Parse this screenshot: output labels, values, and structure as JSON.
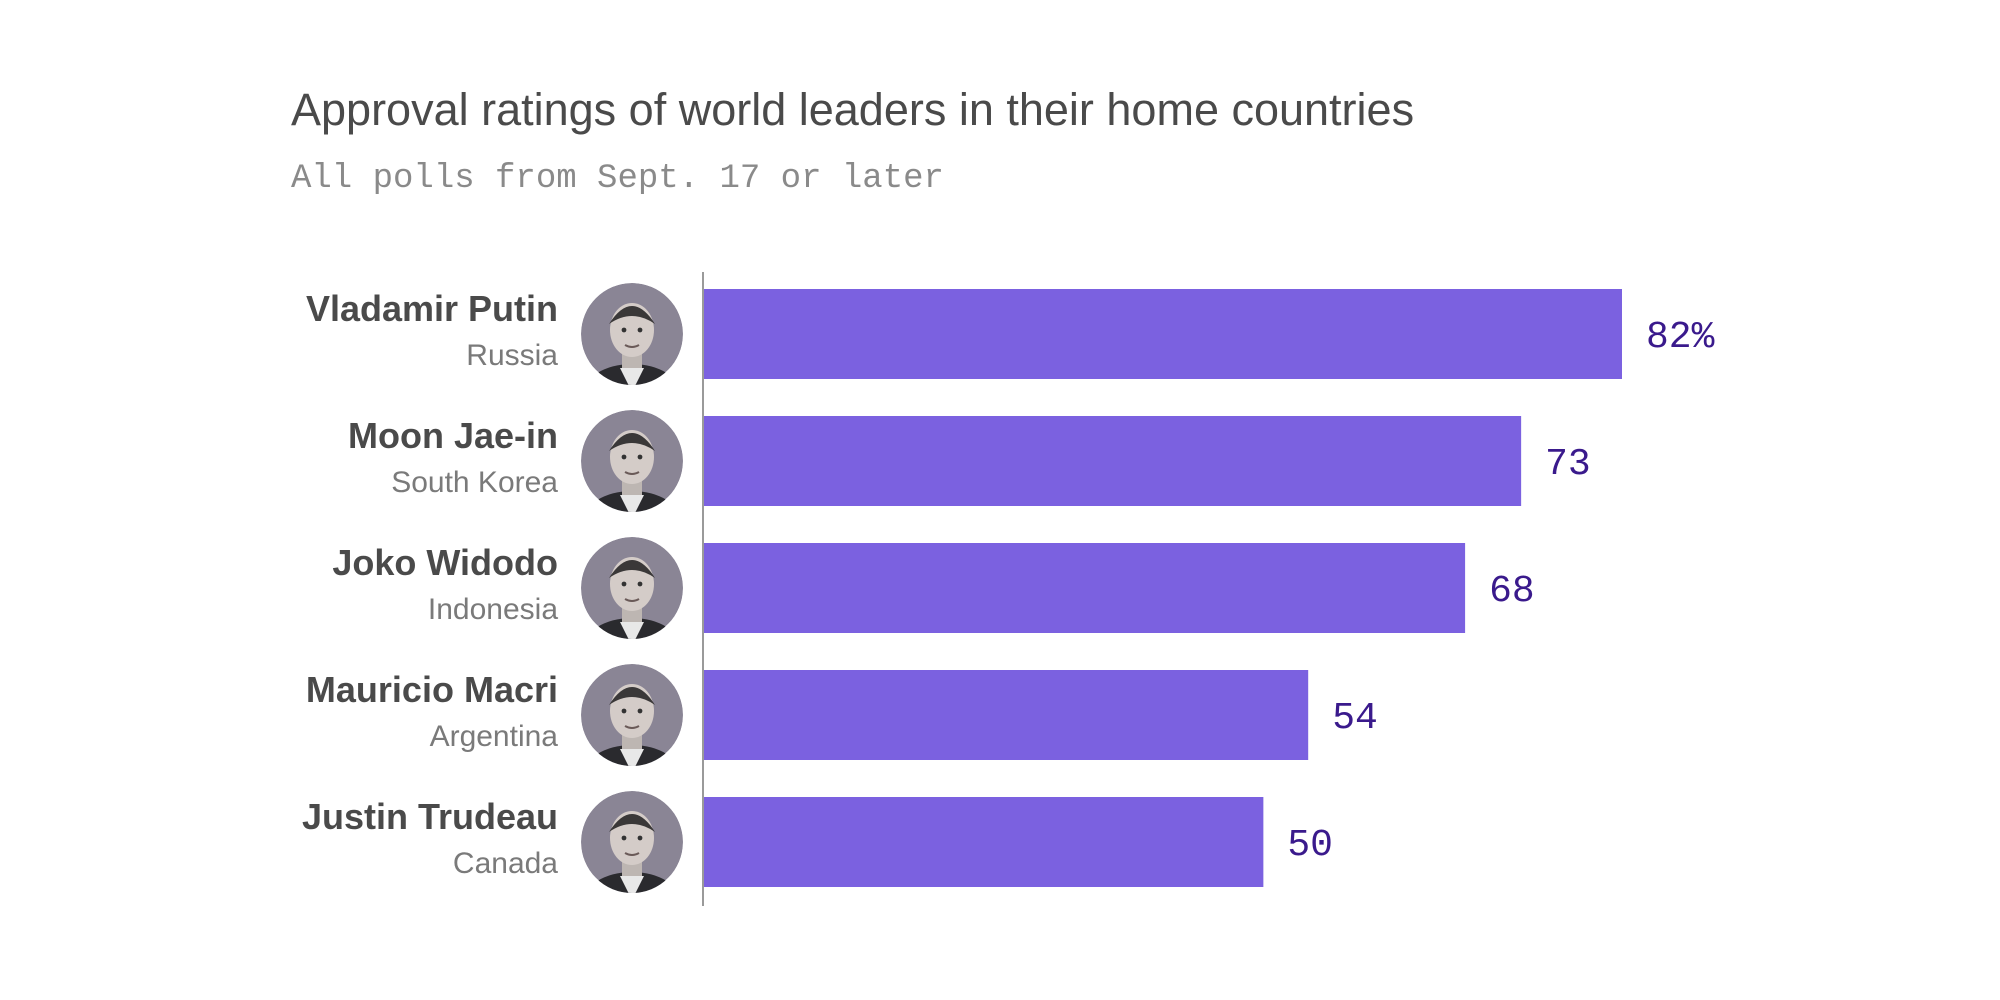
{
  "chart_data": {
    "type": "bar",
    "orientation": "horizontal",
    "title": "Approval ratings of world leaders in their home countries",
    "subtitle": "All polls from Sept. 17 or later",
    "categories": [
      "Vladamir Putin",
      "Moon Jae-in",
      "Joko Widodo",
      "Mauricio Macri",
      "Justin Trudeau"
    ],
    "countries": [
      "Russia",
      "South Korea",
      "Indonesia",
      "Argentina",
      "Canada"
    ],
    "values": [
      82,
      73,
      68,
      54,
      50
    ],
    "value_labels": [
      "82%",
      "73",
      "68",
      "54",
      "50"
    ],
    "xlim": [
      0,
      100
    ],
    "grid": false,
    "colors": {
      "bar": "#7b61e0",
      "value_label": "#3a1a8c",
      "name": "#4a4a4a",
      "country": "#7a7a7a",
      "axis": "#9a9a9a",
      "portrait_bg": "#8a8595"
    },
    "icons": [
      "portrait-putin",
      "portrait-moon",
      "portrait-widodo",
      "portrait-macri",
      "portrait-trudeau"
    ]
  }
}
